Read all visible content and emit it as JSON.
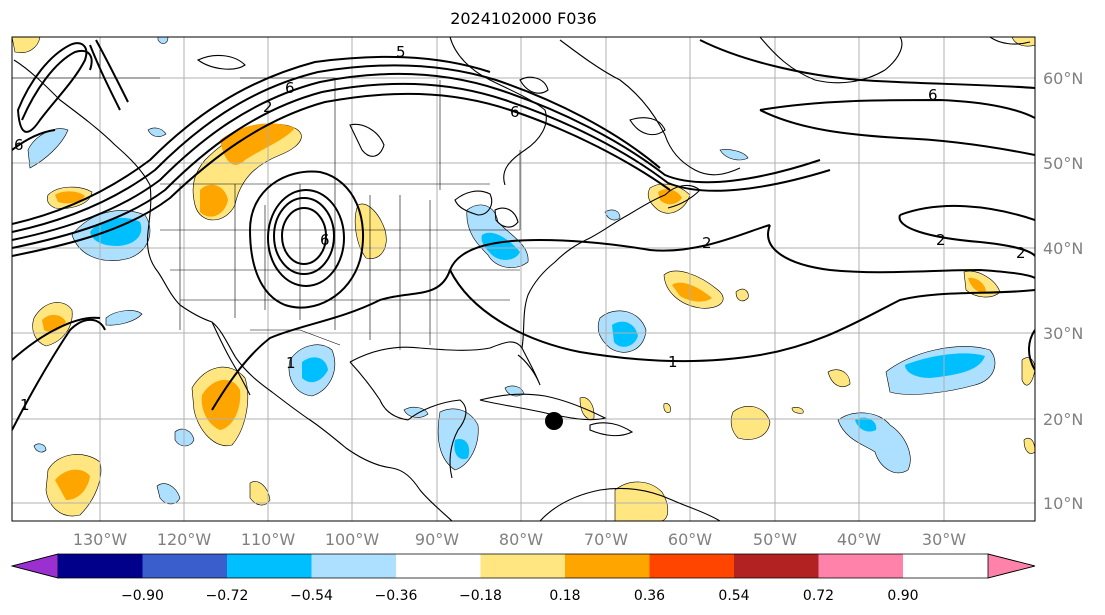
{
  "title": "2024102000 F036",
  "longitude_labels": [
    "130°W",
    "120°W",
    "110°W",
    "100°W",
    "90°W",
    "80°W",
    "70°W",
    "60°W",
    "50°W",
    "40°W",
    "30°W"
  ],
  "latitude_labels": [
    "60°N",
    "50°N",
    "40°N",
    "30°N",
    "20°N",
    "10°N"
  ],
  "contour_labels": [
    "6",
    "6",
    "6",
    "5",
    "6",
    "2",
    "2",
    "2",
    "2",
    "1",
    "1",
    "1",
    "6"
  ],
  "colorbar": {
    "tick_labels": [
      "−0.90",
      "−0.72",
      "−0.54",
      "−0.36",
      "−0.18",
      "0.18",
      "0.36",
      "0.54",
      "0.72",
      "0.90"
    ],
    "colors": {
      "under": "#9b30d0",
      "c1": "#00008b",
      "c2": "#3a5fcd",
      "c3": "#00bfff",
      "c4": "#addfff",
      "c5": "#ffffff",
      "c6": "#ffe680",
      "c7": "#ffa500",
      "c8": "#ff4500",
      "c9": "#b22222",
      "over": "#ff82ab"
    }
  },
  "colors": {
    "land_outline": "#000000",
    "grid": "#b0b0b0",
    "contour": "#000000",
    "marker": "#000000"
  }
}
